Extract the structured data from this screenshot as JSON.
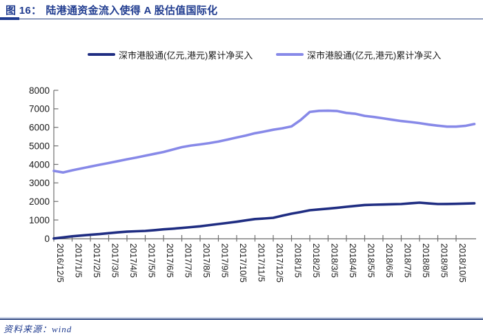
{
  "figure": {
    "label": "图 16：",
    "title": "陆港通资金流入使得 A 股估值国际化"
  },
  "source": {
    "prefix": "资料来源：",
    "name": "wind"
  },
  "colors": {
    "navy_text": "#1f3b8f",
    "rule_dark": "#27407f",
    "rule_light": "#b9c6e4",
    "axis": "#6e6e6e",
    "tick_label": "#1a1a1a",
    "series_dark": "#1f2d82",
    "series_light": "#8789e8"
  },
  "chart_data": {
    "type": "line",
    "title": "陆港通资金流入使得A股估值国际化",
    "xlabel": "",
    "ylabel": "",
    "ylim": [
      0,
      8000
    ],
    "yticks": [
      0,
      1000,
      2000,
      3000,
      4000,
      5000,
      6000,
      7000,
      8000
    ],
    "grid": false,
    "legend_position": "top",
    "x_tick_labels": [
      "2016/12/5",
      "2017/1/5",
      "2017/2/5",
      "2017/3/5",
      "2017/4/5",
      "2017/5/5",
      "2017/6/5",
      "2017/7/5",
      "2017/8/5",
      "2017/9/5",
      "2017/10/5",
      "2017/11/5",
      "2017/12/5",
      "2018/1/5",
      "2018/2/5",
      "2018/3/5",
      "2018/4/5",
      "2018/5/5",
      "2018/6/5",
      "2018/7/5",
      "2018/8/5",
      "2018/9/5",
      "2018/10/5"
    ],
    "points_per_month": 2,
    "x_data_range": [
      "2016/12/5",
      "2018/11/5"
    ],
    "series": [
      {
        "name": "深市港股通(亿元,港元)累计净买入",
        "color": "#1f2d82",
        "values": [
          5,
          60,
          120,
          160,
          200,
          240,
          285,
          330,
          370,
          390,
          410,
          450,
          495,
          530,
          570,
          615,
          660,
          720,
          780,
          840,
          905,
          980,
          1050,
          1080,
          1115,
          1230,
          1340,
          1430,
          1525,
          1570,
          1610,
          1660,
          1710,
          1760,
          1810,
          1825,
          1835,
          1850,
          1860,
          1900,
          1935,
          1895,
          1860,
          1865,
          1870,
          1885,
          1900
        ]
      },
      {
        "name": "深市港股通(亿元,港元)累计净买入",
        "color": "#8789e8",
        "values": [
          3650,
          3565,
          3680,
          3780,
          3880,
          3980,
          4075,
          4175,
          4275,
          4370,
          4470,
          4570,
          4670,
          4800,
          4930,
          5020,
          5080,
          5150,
          5230,
          5340,
          5450,
          5560,
          5680,
          5770,
          5870,
          5950,
          6050,
          6400,
          6830,
          6890,
          6900,
          6880,
          6780,
          6730,
          6620,
          6560,
          6490,
          6410,
          6340,
          6290,
          6230,
          6150,
          6090,
          6040,
          6040,
          6080,
          6180
        ]
      }
    ]
  }
}
